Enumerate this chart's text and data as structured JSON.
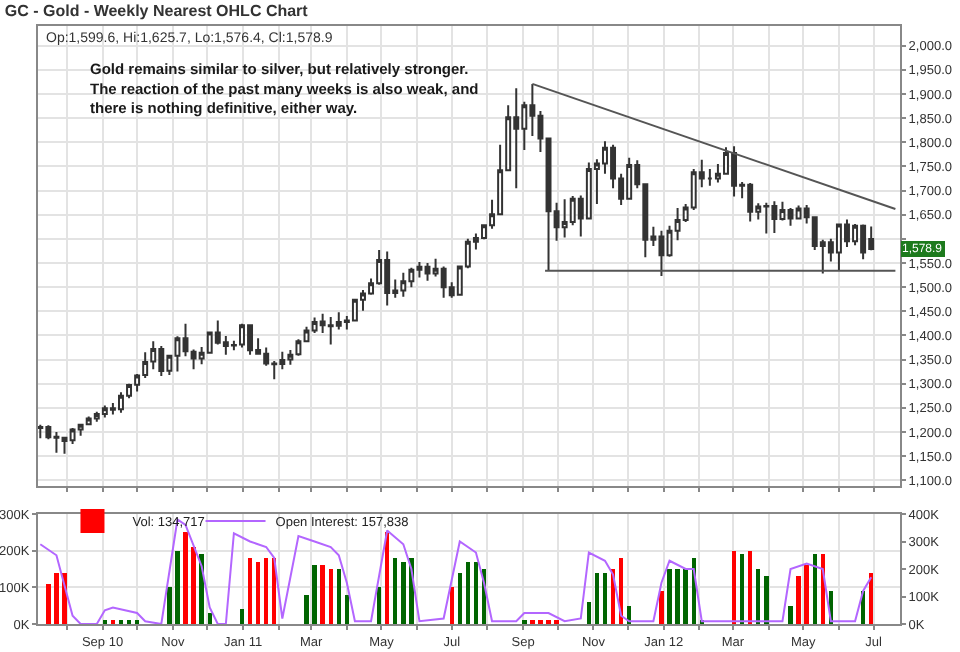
{
  "chart_data": [
    {
      "type": "candlestick",
      "title": "GC - Gold - Weekly Nearest OHLC Chart",
      "annotations": [
        "Op:1,599.6, Hi:1,625.7, Lo:1,576.4, Cl:1,578.9",
        "Gold remains similar to silver, but relatively stronger.\nThe reaction of the past many weeks is also weak, and\nthere is nothing definitive, either way.",
        {
          "text": "1,578.9",
          "y": 1578.9
        }
      ],
      "xlim": [
        "2010-07-07",
        "2012-07-24"
      ],
      "ylim": [
        1088,
        2041
      ],
      "xticks": [
        {
          "value": "2010-08-01",
          "label": null
        },
        {
          "value": "2010-09-01",
          "label": null
        },
        {
          "value": "2010-10-01",
          "label": null
        },
        {
          "value": "2010-11-01",
          "label": null
        },
        {
          "value": "2010-12-01",
          "label": null
        },
        {
          "value": "2011-01-01",
          "label": null
        },
        {
          "value": "2011-02-01",
          "label": null
        },
        {
          "value": "2011-03-01",
          "label": null
        },
        {
          "value": "2011-04-01",
          "label": null
        },
        {
          "value": "2011-05-01",
          "label": null
        },
        {
          "value": "2011-06-01",
          "label": null
        },
        {
          "value": "2011-07-01",
          "label": null
        },
        {
          "value": "2011-08-01",
          "label": null
        },
        {
          "value": "2011-09-01",
          "label": null
        },
        {
          "value": "2011-10-01",
          "label": null
        },
        {
          "value": "2011-11-01",
          "label": null
        },
        {
          "value": "2011-12-01",
          "label": null
        },
        {
          "value": "2012-01-01",
          "label": null
        },
        {
          "value": "2012-02-01",
          "label": null
        },
        {
          "value": "2012-03-01",
          "label": null
        },
        {
          "value": "2012-04-01",
          "label": null
        },
        {
          "value": "2012-05-01",
          "label": null
        },
        {
          "value": "2012-06-01",
          "label": null
        },
        {
          "value": "2012-07-01",
          "label": null
        }
      ],
      "yticks": [
        {
          "value": 1100,
          "label": "1,100.0"
        },
        {
          "value": 1150,
          "label": "1,150.0"
        },
        {
          "value": 1200,
          "label": "1,200.0"
        },
        {
          "value": 1250,
          "label": "1,250.0"
        },
        {
          "value": 1300,
          "label": "1,300.0"
        },
        {
          "value": 1350,
          "label": "1,350.0"
        },
        {
          "value": 1400,
          "label": "1,400.0"
        },
        {
          "value": 1450,
          "label": "1,450.0"
        },
        {
          "value": 1500,
          "label": "1,500.0"
        },
        {
          "value": 1550,
          "label": "1,550.0"
        },
        {
          "value": 1600,
          "label": null
        },
        {
          "value": 1650,
          "label": "1,650.0"
        },
        {
          "value": 1700,
          "label": "1,700.0"
        },
        {
          "value": 1750,
          "label": "1,750.0"
        },
        {
          "value": 1800,
          "label": "1,800.0"
        },
        {
          "value": 1850,
          "label": "1,850.0"
        },
        {
          "value": 1900,
          "label": "1,900.0"
        },
        {
          "value": 1950,
          "label": "1,950.0"
        },
        {
          "value": 2000,
          "label": "2,000.0"
        }
      ],
      "grid": true,
      "tick_labels": "y",
      "x": [
        "2010-07-09",
        "2010-07-16",
        "2010-07-23",
        "2010-07-30",
        "2010-08-06",
        "2010-08-13",
        "2010-08-20",
        "2010-08-27",
        "2010-09-03",
        "2010-09-10",
        "2010-09-17",
        "2010-09-24",
        "2010-10-01",
        "2010-10-08",
        "2010-10-15",
        "2010-10-22",
        "2010-10-29",
        "2010-11-05",
        "2010-11-12",
        "2010-11-19",
        "2010-11-26",
        "2010-12-03",
        "2010-12-10",
        "2010-12-17",
        "2010-12-24",
        "2010-12-31",
        "2011-01-07",
        "2011-01-14",
        "2011-01-21",
        "2011-01-28",
        "2011-02-04",
        "2011-02-11",
        "2011-02-18",
        "2011-02-25",
        "2011-03-04",
        "2011-03-11",
        "2011-03-18",
        "2011-03-25",
        "2011-04-01",
        "2011-04-08",
        "2011-04-15",
        "2011-04-22",
        "2011-04-29",
        "2011-05-06",
        "2011-05-13",
        "2011-05-20",
        "2011-05-27",
        "2011-06-03",
        "2011-06-10",
        "2011-06-17",
        "2011-06-24",
        "2011-07-01",
        "2011-07-08",
        "2011-07-15",
        "2011-07-22",
        "2011-07-29",
        "2011-08-05",
        "2011-08-12",
        "2011-08-19",
        "2011-08-26",
        "2011-09-02",
        "2011-09-09",
        "2011-09-16",
        "2011-09-23",
        "2011-09-30",
        "2011-10-07",
        "2011-10-14",
        "2011-10-21",
        "2011-10-28",
        "2011-11-04",
        "2011-11-11",
        "2011-11-18",
        "2011-11-25",
        "2011-12-02",
        "2011-12-09",
        "2011-12-16",
        "2011-12-23",
        "2011-12-30",
        "2012-01-06",
        "2012-01-13",
        "2012-01-20",
        "2012-01-27",
        "2012-02-03",
        "2012-02-10",
        "2012-02-17",
        "2012-02-24",
        "2012-03-02",
        "2012-03-09",
        "2012-03-16",
        "2012-03-23",
        "2012-03-30",
        "2012-04-06",
        "2012-04-13",
        "2012-04-20",
        "2012-04-27",
        "2012-05-04",
        "2012-05-11",
        "2012-05-18",
        "2012-05-25",
        "2012-06-01",
        "2012-06-08",
        "2012-06-15",
        "2012-06-22",
        "2012-06-29"
      ],
      "series": [
        {
          "color": "#333333",
          "ohlc": [
            [
              1208,
              1215,
              1187,
              1210
            ],
            [
              1210,
              1214,
              1185,
              1189
            ],
            [
              1190,
              1200,
              1157,
              1188
            ],
            [
              1188,
              1190,
              1155,
              1181
            ],
            [
              1183,
              1208,
              1175,
              1205
            ],
            [
              1205,
              1215,
              1192,
              1215
            ],
            [
              1216,
              1232,
              1214,
              1228
            ],
            [
              1228,
              1242,
              1221,
              1237
            ],
            [
              1237,
              1255,
              1230,
              1249
            ],
            [
              1249,
              1260,
              1236,
              1246
            ],
            [
              1247,
              1282,
              1240,
              1275
            ],
            [
              1275,
              1300,
              1270,
              1297
            ],
            [
              1298,
              1320,
              1284,
              1317
            ],
            [
              1318,
              1365,
              1312,
              1345
            ],
            [
              1346,
              1388,
              1330,
              1372
            ],
            [
              1372,
              1378,
              1316,
              1326
            ],
            [
              1327,
              1358,
              1318,
              1358
            ],
            [
              1358,
              1398,
              1325,
              1394
            ],
            [
              1394,
              1424,
              1357,
              1367
            ],
            [
              1366,
              1371,
              1330,
              1352
            ],
            [
              1352,
              1376,
              1340,
              1364
            ],
            [
              1364,
              1406,
              1362,
              1406
            ],
            [
              1406,
              1431,
              1381,
              1385
            ],
            [
              1386,
              1399,
              1360,
              1378
            ],
            [
              1379,
              1389,
              1369,
              1380
            ],
            [
              1381,
              1424,
              1375,
              1421
            ],
            [
              1421,
              1423,
              1360,
              1369
            ],
            [
              1370,
              1394,
              1360,
              1362
            ],
            [
              1362,
              1375,
              1337,
              1342
            ],
            [
              1342,
              1347,
              1309,
              1340
            ],
            [
              1341,
              1366,
              1330,
              1349
            ],
            [
              1350,
              1370,
              1339,
              1360
            ],
            [
              1361,
              1392,
              1358,
              1388
            ],
            [
              1388,
              1418,
              1386,
              1410
            ],
            [
              1410,
              1437,
              1405,
              1428
            ],
            [
              1429,
              1445,
              1405,
              1421
            ],
            [
              1421,
              1438,
              1381,
              1419
            ],
            [
              1420,
              1448,
              1412,
              1428
            ],
            [
              1428,
              1440,
              1412,
              1431
            ],
            [
              1431,
              1475,
              1430,
              1474
            ],
            [
              1474,
              1494,
              1451,
              1487
            ],
            [
              1487,
              1518,
              1484,
              1508
            ],
            [
              1508,
              1577,
              1505,
              1556
            ],
            [
              1556,
              1574,
              1462,
              1488
            ],
            [
              1488,
              1516,
              1478,
              1493
            ],
            [
              1493,
              1530,
              1480,
              1512
            ],
            [
              1512,
              1540,
              1500,
              1536
            ],
            [
              1536,
              1552,
              1520,
              1542
            ],
            [
              1542,
              1550,
              1513,
              1528
            ],
            [
              1528,
              1559,
              1522,
              1538
            ],
            [
              1538,
              1543,
              1478,
              1500
            ],
            [
              1500,
              1510,
              1478,
              1483
            ],
            [
              1484,
              1545,
              1482,
              1543
            ],
            [
              1543,
              1600,
              1539,
              1594
            ],
            [
              1594,
              1611,
              1578,
              1602
            ],
            [
              1602,
              1630,
              1599,
              1628
            ],
            [
              1628,
              1681,
              1621,
              1651
            ],
            [
              1651,
              1795,
              1650,
              1742
            ],
            [
              1742,
              1877,
              1741,
              1852
            ],
            [
              1852,
              1912,
              1705,
              1828
            ],
            [
              1828,
              1884,
              1784,
              1877
            ],
            [
              1877,
              1921,
              1813,
              1855
            ],
            [
              1855,
              1865,
              1780,
              1808
            ],
            [
              1808,
              1810,
              1535,
              1657
            ],
            [
              1657,
              1675,
              1596,
              1624
            ],
            [
              1624,
              1682,
              1603,
              1635
            ],
            [
              1635,
              1689,
              1628,
              1683
            ],
            [
              1683,
              1690,
              1605,
              1642
            ],
            [
              1642,
              1758,
              1640,
              1745
            ],
            [
              1745,
              1765,
              1672,
              1756
            ],
            [
              1756,
              1802,
              1735,
              1789
            ],
            [
              1789,
              1795,
              1705,
              1725
            ],
            [
              1725,
              1735,
              1670,
              1683
            ],
            [
              1683,
              1768,
              1683,
              1753
            ],
            [
              1753,
              1763,
              1705,
              1713
            ],
            [
              1713,
              1715,
              1562,
              1598
            ],
            [
              1598,
              1625,
              1585,
              1605
            ],
            [
              1605,
              1617,
              1523,
              1566
            ],
            [
              1566,
              1627,
              1563,
              1617
            ],
            [
              1617,
              1664,
              1597,
              1639
            ],
            [
              1639,
              1672,
              1635,
              1665
            ],
            [
              1665,
              1745,
              1660,
              1738
            ],
            [
              1738,
              1764,
              1707,
              1725
            ],
            [
              1725,
              1745,
              1710,
              1725
            ],
            [
              1725,
              1755,
              1717,
              1735
            ],
            [
              1735,
              1790,
              1733,
              1778
            ],
            [
              1778,
              1792,
              1688,
              1710
            ],
            [
              1710,
              1718,
              1684,
              1712
            ],
            [
              1712,
              1716,
              1636,
              1656
            ],
            [
              1656,
              1674,
              1640,
              1667
            ],
            [
              1667,
              1675,
              1611,
              1668
            ],
            [
              1668,
              1678,
              1612,
              1641
            ],
            [
              1641,
              1677,
              1638,
              1660
            ],
            [
              1660,
              1664,
              1627,
              1642
            ],
            [
              1642,
              1669,
              1640,
              1663
            ],
            [
              1663,
              1670,
              1632,
              1645
            ],
            [
              1645,
              1647,
              1577,
              1585
            ],
            [
              1585,
              1598,
              1528,
              1593
            ],
            [
              1593,
              1600,
              1553,
              1572
            ],
            [
              1572,
              1632,
              1535,
              1630
            ],
            [
              1630,
              1640,
              1583,
              1595
            ],
            [
              1595,
              1631,
              1587,
              1627
            ],
            [
              1627,
              1630,
              1558,
              1572
            ],
            [
              1599.6,
              1625.7,
              1576.4,
              1578.9
            ]
          ]
        },
        {
          "type": "line",
          "color": "#555555",
          "x": [
            "2011-09-09",
            "2012-07-20"
          ],
          "values": [
            1921,
            1662
          ]
        },
        {
          "type": "line",
          "color": "#555555",
          "x": [
            "2011-09-20",
            "2012-07-20"
          ],
          "values": [
            1534,
            1534
          ]
        }
      ]
    },
    {
      "type": "bar",
      "legend": "top left",
      "grid": true,
      "xlim": [
        "2010-07-07",
        "2012-07-24"
      ],
      "xticks": [
        {
          "value": "2010-08-01",
          "label": null
        },
        {
          "value": "2010-09-01",
          "label": "Sep 10"
        },
        {
          "value": "2010-10-01",
          "label": null
        },
        {
          "value": "2010-11-01",
          "label": "Nov"
        },
        {
          "value": "2010-12-01",
          "label": null
        },
        {
          "value": "2011-01-01",
          "label": "Jan 11"
        },
        {
          "value": "2011-02-01",
          "label": null
        },
        {
          "value": "2011-03-01",
          "label": "Mar"
        },
        {
          "value": "2011-04-01",
          "label": null
        },
        {
          "value": "2011-05-01",
          "label": "May"
        },
        {
          "value": "2011-06-01",
          "label": null
        },
        {
          "value": "2011-07-01",
          "label": "Jul"
        },
        {
          "value": "2011-08-01",
          "label": null
        },
        {
          "value": "2011-09-01",
          "label": "Sep"
        },
        {
          "value": "2011-10-01",
          "label": null
        },
        {
          "value": "2011-11-01",
          "label": "Nov"
        },
        {
          "value": "2011-12-01",
          "label": null
        },
        {
          "value": "2012-01-01",
          "label": "Jan 12"
        },
        {
          "value": "2012-02-01",
          "label": null
        },
        {
          "value": "2012-03-01",
          "label": "Mar"
        },
        {
          "value": "2012-04-01",
          "label": null
        },
        {
          "value": "2012-05-01",
          "label": "May"
        },
        {
          "value": "2012-06-01",
          "label": null
        },
        {
          "value": "2012-07-01",
          "label": "Jul"
        }
      ],
      "ylim": [
        0,
        300000
      ],
      "yticks": [
        {
          "value": 0,
          "label": "0K"
        },
        {
          "value": 100000,
          "label": "100K"
        },
        {
          "value": 200000,
          "label": "200K"
        },
        {
          "value": 300000,
          "label": "300K"
        }
      ],
      "y2lim": [
        0,
        400000
      ],
      "y2ticks": [
        {
          "value": 0,
          "label": "0K"
        },
        {
          "value": 100000,
          "label": "100K"
        },
        {
          "value": 200000,
          "label": "200K"
        },
        {
          "value": 300000,
          "label": "300K"
        },
        {
          "value": 400000,
          "label": "400K"
        }
      ],
      "series": [
        {
          "name": "Vol: 134,717",
          "x": [
            "2010-07-16",
            "2010-07-23",
            "2010-07-30",
            "2010-09-03",
            "2010-09-10",
            "2010-09-17",
            "2010-09-24",
            "2010-10-01",
            "2010-10-29",
            "2010-11-05",
            "2010-11-12",
            "2010-11-19",
            "2010-11-26",
            "2010-12-03",
            "2010-12-31",
            "2011-01-07",
            "2011-01-14",
            "2011-01-21",
            "2011-01-28",
            "2011-02-25",
            "2011-03-04",
            "2011-03-11",
            "2011-03-18",
            "2011-03-25",
            "2011-04-01",
            "2011-04-29",
            "2011-05-06",
            "2011-05-13",
            "2011-05-20",
            "2011-05-27",
            "2011-07-01",
            "2011-07-08",
            "2011-07-15",
            "2011-07-22",
            "2011-07-29",
            "2011-09-02",
            "2011-09-09",
            "2011-09-16",
            "2011-09-23",
            "2011-09-30",
            "2011-10-28",
            "2011-11-04",
            "2011-11-11",
            "2011-11-18",
            "2011-11-25",
            "2011-12-02",
            "2011-12-30",
            "2012-01-06",
            "2012-01-13",
            "2012-01-20",
            "2012-01-27",
            "2012-02-03",
            "2012-03-02",
            "2012-03-09",
            "2012-03-16",
            "2012-03-23",
            "2012-03-30",
            "2012-04-20",
            "2012-04-27",
            "2012-05-04",
            "2012-05-11",
            "2012-05-18",
            "2012-05-25",
            "2012-06-22",
            "2012-06-29"
          ],
          "values": [
            110000,
            140000,
            140000,
            10000,
            10000,
            10000,
            10000,
            10000,
            100000,
            200000,
            250000,
            210000,
            190000,
            30000,
            40000,
            180000,
            170000,
            180000,
            180000,
            80000,
            160000,
            160000,
            150000,
            150000,
            80000,
            100000,
            250000,
            180000,
            170000,
            180000,
            100000,
            140000,
            170000,
            170000,
            150000,
            10000,
            10000,
            10000,
            10000,
            10000,
            60000,
            140000,
            140000,
            150000,
            180000,
            50000,
            90000,
            150000,
            150000,
            150000,
            180000,
            10000,
            200000,
            190000,
            200000,
            150000,
            130000,
            50000,
            130000,
            160000,
            190000,
            190000,
            90000,
            90000,
            140000
          ],
          "colors": [
            "#ff0000",
            "#ff0000",
            "#ff0000",
            "#006400",
            "#ff0000",
            "#006400",
            "#006400",
            "#006400",
            "#006400",
            "#006400",
            "#ff0000",
            "#ff0000",
            "#006400",
            "#006400",
            "#006400",
            "#ff0000",
            "#ff0000",
            "#ff0000",
            "#ff0000",
            "#006400",
            "#006400",
            "#ff0000",
            "#ff0000",
            "#006400",
            "#006400",
            "#006400",
            "#ff0000",
            "#006400",
            "#006400",
            "#006400",
            "#ff0000",
            "#006400",
            "#006400",
            "#006400",
            "#006400",
            "#006400",
            "#ff0000",
            "#ff0000",
            "#ff0000",
            "#ff0000",
            "#006400",
            "#006400",
            "#006400",
            "#ff0000",
            "#ff0000",
            "#006400",
            "#ff0000",
            "#006400",
            "#006400",
            "#006400",
            "#006400",
            "#006400",
            "#ff0000",
            "#006400",
            "#ff0000",
            "#006400",
            "#006400",
            "#006400",
            "#ff0000",
            "#ff0000",
            "#006400",
            "#ff0000",
            "#006400",
            "#006400",
            "#ff0000"
          ]
        },
        {
          "name": "Open Interest: 157,838",
          "type": "line",
          "axis": "y2",
          "color": "#b366ff",
          "x": [
            "2010-07-09",
            "2010-07-23",
            "2010-08-06",
            "2010-08-13",
            "2010-08-27",
            "2010-09-03",
            "2010-09-10",
            "2010-10-01",
            "2010-10-08",
            "2010-10-22",
            "2010-11-05",
            "2010-11-12",
            "2010-11-26",
            "2010-12-03",
            "2010-12-10",
            "2010-12-17",
            "2010-12-24",
            "2011-01-07",
            "2011-01-21",
            "2011-01-28",
            "2011-02-04",
            "2011-02-18",
            "2011-03-04",
            "2011-03-18",
            "2011-03-25",
            "2011-04-01",
            "2011-04-08",
            "2011-04-22",
            "2011-05-06",
            "2011-05-20",
            "2011-05-27",
            "2011-06-03",
            "2011-06-24",
            "2011-07-08",
            "2011-07-22",
            "2011-07-29",
            "2011-08-05",
            "2011-08-26",
            "2011-09-02",
            "2011-09-23",
            "2011-10-07",
            "2011-10-21",
            "2011-10-28",
            "2011-11-11",
            "2011-11-18",
            "2011-11-25",
            "2011-12-02",
            "2011-12-23",
            "2011-12-30",
            "2012-01-06",
            "2012-01-20",
            "2012-01-27",
            "2012-02-03",
            "2012-04-13",
            "2012-04-20",
            "2012-05-04",
            "2012-05-18",
            "2012-05-25",
            "2012-06-15",
            "2012-06-22",
            "2012-06-29"
          ],
          "values": [
            290000,
            250000,
            30000,
            0,
            0,
            50000,
            60000,
            40000,
            10000,
            0,
            380000,
            360000,
            210000,
            60000,
            0,
            0,
            330000,
            300000,
            280000,
            240000,
            20000,
            320000,
            300000,
            280000,
            250000,
            150000,
            10000,
            10000,
            340000,
            290000,
            200000,
            10000,
            20000,
            300000,
            260000,
            150000,
            10000,
            10000,
            40000,
            40000,
            10000,
            20000,
            260000,
            230000,
            180000,
            30000,
            10000,
            10000,
            150000,
            230000,
            200000,
            200000,
            10000,
            10000,
            200000,
            220000,
            200000,
            10000,
            10000,
            120000,
            170000
          ]
        }
      ]
    }
  ]
}
